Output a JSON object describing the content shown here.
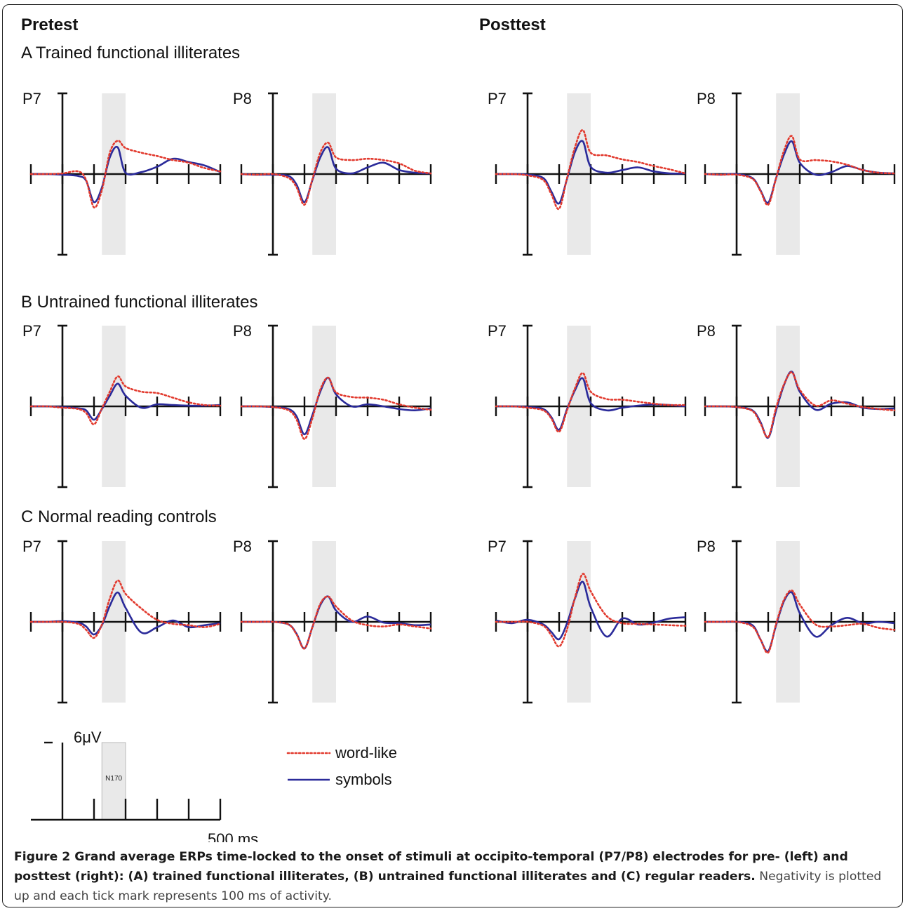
{
  "headers": {
    "pre": "Pretest",
    "post": "Posttest"
  },
  "groups": {
    "A": "A Trained functional illiterates",
    "B": "B Untrained functional illiterates",
    "C": "C Normal reading controls"
  },
  "scale": {
    "amplitude": "6μV",
    "time": "500 ms",
    "window": "N170"
  },
  "legend": {
    "word": "word-like",
    "symbols": "symbols"
  },
  "colors": {
    "word": "#e23a2e",
    "symbols": "#2b2b9a",
    "shade": "#e9e9e9",
    "axis": "#111111"
  },
  "caption": {
    "bold": "Figure 2 Grand average ERPs time-locked to the onset of stimuli at occipito-temporal (P7/P8) electrodes for pre- (left) and posttest (right): (A) trained functional illiterates, (B) untrained functional illiterates and (C) regular readers.",
    "rest": " Negativity is plotted up and each tick mark represents 100 ms of activity."
  },
  "chart_data": {
    "type": "line",
    "x_unit": "ms",
    "x_range": [
      -100,
      500
    ],
    "y_unit": "μV (negative up)",
    "tick_interval_ms": 100,
    "shaded_window_ms": [
      125,
      200
    ],
    "shaded_window_label": "N170",
    "times_ms": [
      -100,
      -50,
      0,
      50,
      75,
      100,
      125,
      150,
      175,
      200,
      250,
      300,
      350,
      400,
      450,
      500
    ],
    "panels": [
      {
        "group": "A",
        "session": "Pretest",
        "electrode": "P7",
        "word": [
          0,
          0,
          -0.1,
          -0.4,
          0.9,
          5.0,
          2.4,
          -3.2,
          -5.0,
          -3.9,
          -3.2,
          -2.7,
          -2.1,
          -1.7,
          -0.9,
          -0.4
        ],
        "symbols": [
          0,
          0,
          0.1,
          0.3,
          1.0,
          4.2,
          2.0,
          -2.5,
          -4.0,
          -0.2,
          -0.3,
          -1.1,
          -2.3,
          -1.8,
          -1.3,
          -0.3
        ]
      },
      {
        "group": "A",
        "session": "Pretest",
        "electrode": "P8",
        "word": [
          0,
          0.1,
          0,
          0.6,
          2.0,
          4.6,
          0.8,
          -3.2,
          -4.7,
          -2.5,
          -2.1,
          -2.3,
          -2.1,
          -1.6,
          -0.5,
          -0.1
        ],
        "symbols": [
          0,
          0.1,
          0.1,
          0.3,
          1.6,
          4.2,
          0.9,
          -2.5,
          -4.0,
          -0.8,
          -0.1,
          -1.0,
          -1.7,
          -0.6,
          -0.2,
          -0.1
        ]
      },
      {
        "group": "A",
        "session": "Posttest",
        "electrode": "P7",
        "word": [
          0,
          0,
          0.2,
          0.9,
          3.0,
          5.2,
          0.6,
          -4.0,
          -6.6,
          -3.2,
          -2.8,
          -2.2,
          -1.8,
          -1.2,
          -0.7,
          -0.1
        ],
        "symbols": [
          0,
          0,
          0.1,
          0.6,
          2.6,
          4.4,
          0.7,
          -3.3,
          -4.9,
          -1.1,
          -0.2,
          -0.6,
          -1.0,
          -0.4,
          -0.1,
          -0.1
        ]
      },
      {
        "group": "A",
        "session": "Posttest",
        "electrode": "P8",
        "word": [
          0,
          0.1,
          0.1,
          0.7,
          2.5,
          4.6,
          0.6,
          -3.5,
          -5.7,
          -2.2,
          -2.1,
          -1.9,
          -1.4,
          -0.6,
          -0.2,
          -0.1
        ],
        "symbols": [
          0,
          0.1,
          0,
          0.6,
          2.4,
          4.3,
          0.6,
          -2.9,
          -4.9,
          -1.7,
          0.1,
          -0.3,
          -1.2,
          -0.6,
          -0.2,
          -0.1
        ]
      },
      {
        "group": "B",
        "session": "Pretest",
        "electrode": "P7",
        "word": [
          0,
          0,
          0.2,
          0.4,
          1.0,
          2.7,
          0.3,
          -2.2,
          -4.5,
          -3.0,
          -2.2,
          -2.0,
          -1.3,
          -0.6,
          -0.2,
          -0.1
        ],
        "symbols": [
          0,
          0,
          0.1,
          0.3,
          0.6,
          2.0,
          0.4,
          -1.6,
          -3.4,
          -1.6,
          0.2,
          -0.3,
          -0.2,
          -0.1,
          -0.1,
          -0.2
        ]
      },
      {
        "group": "B",
        "session": "Pretest",
        "electrode": "P8",
        "word": [
          0,
          0,
          0.1,
          0.6,
          2.0,
          4.9,
          1.8,
          -2.5,
          -4.3,
          -2.1,
          -1.4,
          -1.3,
          -1.0,
          -0.3,
          0.2,
          0.5
        ],
        "symbols": [
          0,
          0,
          0.1,
          0.4,
          1.5,
          4.2,
          1.3,
          -2.2,
          -4.3,
          -1.8,
          0.0,
          -0.3,
          0.0,
          0.4,
          0.6,
          0.3
        ]
      },
      {
        "group": "B",
        "session": "Posttest",
        "electrode": "P7",
        "word": [
          0,
          0,
          0.2,
          0.6,
          1.8,
          3.8,
          0.6,
          -2.7,
          -5.0,
          -2.2,
          -1.1,
          -1.0,
          -0.7,
          -0.4,
          -0.2,
          -0.2
        ],
        "symbols": [
          0,
          0,
          0.1,
          0.4,
          1.6,
          3.5,
          0.4,
          -2.4,
          -4.2,
          -0.5,
          0.6,
          0.2,
          -0.1,
          -0.3,
          -0.2,
          0
        ]
      },
      {
        "group": "B",
        "session": "Posttest",
        "electrode": "P8",
        "word": [
          0,
          0,
          0.1,
          0.7,
          2.5,
          4.6,
          0.2,
          -3.3,
          -5.1,
          -2.5,
          -0.1,
          -0.9,
          -0.4,
          0.1,
          0.4,
          0.6
        ],
        "symbols": [
          0,
          0,
          0.1,
          0.6,
          2.3,
          4.7,
          0.6,
          -3.2,
          -5.2,
          -2.2,
          0.5,
          -0.4,
          -0.6,
          0.2,
          0.4,
          0.3
        ]
      },
      {
        "group": "C",
        "session": "Pretest",
        "electrode": "P7",
        "word": [
          0,
          0,
          0,
          0.3,
          1.2,
          2.4,
          0.4,
          -3.5,
          -6.2,
          -4.2,
          -2.0,
          -0.3,
          0.3,
          0.5,
          0.8,
          0.3
        ],
        "symbols": [
          0,
          0,
          -0.1,
          0.1,
          0.7,
          1.9,
          0.5,
          -2.4,
          -4.4,
          -2.1,
          1.6,
          0.8,
          -0.2,
          0.8,
          0.5,
          0.2
        ]
      },
      {
        "group": "C",
        "session": "Pretest",
        "electrode": "P8",
        "word": [
          0,
          0,
          0,
          0.4,
          1.9,
          4.0,
          0.8,
          -2.7,
          -3.8,
          -2.3,
          -0.2,
          0.5,
          0.7,
          0.4,
          0.7,
          1.0
        ],
        "symbols": [
          0,
          0,
          0,
          0.4,
          1.8,
          4.0,
          0.8,
          -2.5,
          -3.8,
          -1.7,
          0.0,
          -0.8,
          0.1,
          0.2,
          0.5,
          0.4
        ]
      },
      {
        "group": "C",
        "session": "Posttest",
        "electrode": "P7",
        "word": [
          0,
          0,
          0,
          0.6,
          2.0,
          3.7,
          1.1,
          -3.6,
          -7.2,
          -4.6,
          -0.9,
          0.2,
          0.3,
          0.4,
          0.5,
          0.6
        ],
        "symbols": [
          -0.2,
          0.2,
          -0.3,
          0.4,
          1.5,
          2.6,
          0.2,
          -3.5,
          -6.0,
          -2.2,
          2.2,
          -0.5,
          0.4,
          0.1,
          -0.5,
          -0.7
        ]
      },
      {
        "group": "C",
        "session": "Posttest",
        "electrode": "P8",
        "word": [
          0,
          0,
          0,
          0.7,
          2.6,
          4.6,
          0.3,
          -3.3,
          -4.7,
          -2.6,
          0.4,
          0.7,
          0.5,
          0.3,
          0.9,
          1.2
        ],
        "symbols": [
          0,
          0,
          0,
          0.5,
          2.6,
          4.4,
          0.5,
          -3.1,
          -4.4,
          -1.3,
          2.2,
          0.5,
          -0.6,
          0.2,
          0.0,
          0.2
        ]
      }
    ]
  }
}
